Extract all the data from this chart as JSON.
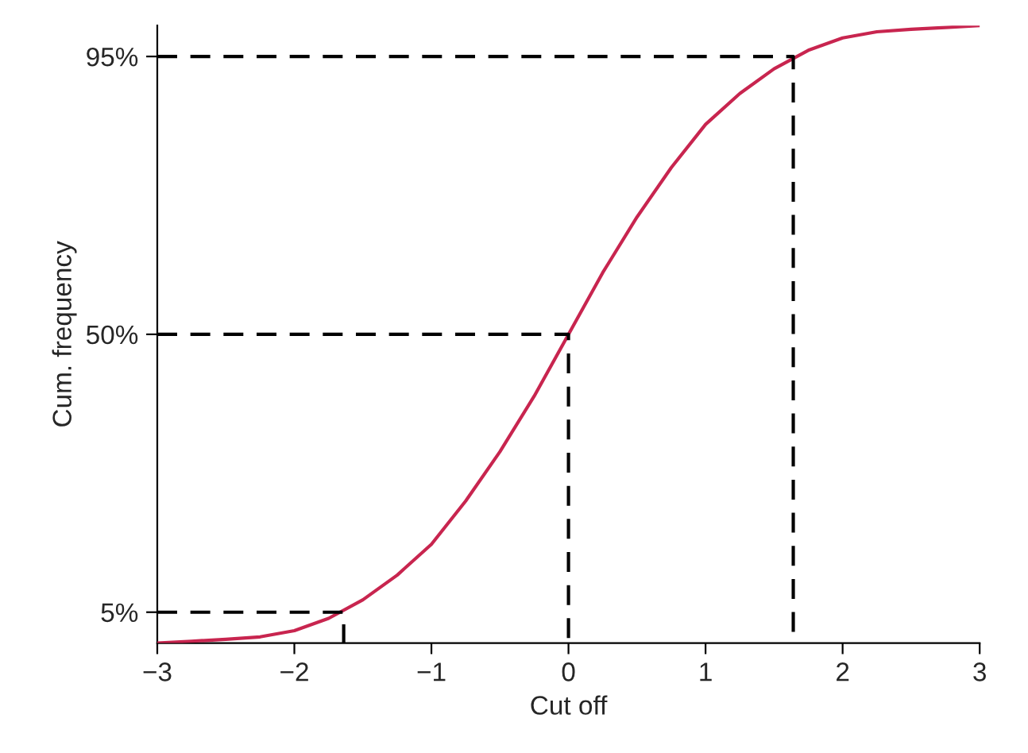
{
  "chart_data": {
    "type": "line",
    "xlabel": "Cut off",
    "ylabel": "Cum. frequency",
    "x": [
      -3,
      -2.75,
      -2.5,
      -2.25,
      -2,
      -1.75,
      -1.5,
      -1.25,
      -1,
      -0.75,
      -0.5,
      -0.25,
      0,
      0.25,
      0.5,
      0.75,
      1,
      1.25,
      1.5,
      1.75,
      2,
      2.25,
      2.5,
      2.75,
      3
    ],
    "series": [
      {
        "color": "#c8254f",
        "values": [
          0,
          0.3,
          0.6,
          1,
          2,
          4,
          7,
          11,
          16,
          23,
          31,
          40,
          50,
          60,
          69,
          77,
          84,
          89,
          93,
          96,
          98,
          99,
          99.4,
          99.7,
          100
        ]
      },
      {
        "color": "#000000",
        "line_style": "dashed",
        "x": [
          -3,
          -1.64,
          -1.64
        ],
        "values": [
          5,
          5,
          0
        ]
      },
      {
        "color": "#000000",
        "line_style": "dashed",
        "x": [
          -3,
          0,
          0
        ],
        "values": [
          50,
          50,
          0
        ]
      },
      {
        "color": "#000000",
        "line_style": "dashed",
        "x": [
          -3,
          1.64,
          1.64
        ],
        "values": [
          95,
          95,
          0
        ]
      }
    ],
    "xlim": [
      -3,
      3
    ],
    "ylim": [
      0,
      100
    ],
    "xticks": [
      {
        "value": -3,
        "label": "−3"
      },
      {
        "value": -2,
        "label": "−2"
      },
      {
        "value": -1,
        "label": "−1"
      },
      0,
      1,
      2,
      3
    ],
    "yticks": [
      {
        "value": 5,
        "label": "5%"
      },
      {
        "value": 50,
        "label": "50%"
      },
      {
        "value": 95,
        "label": "95%"
      }
    ],
    "grid": false,
    "legend": false,
    "marker": "none",
    "line_style": "solid"
  }
}
